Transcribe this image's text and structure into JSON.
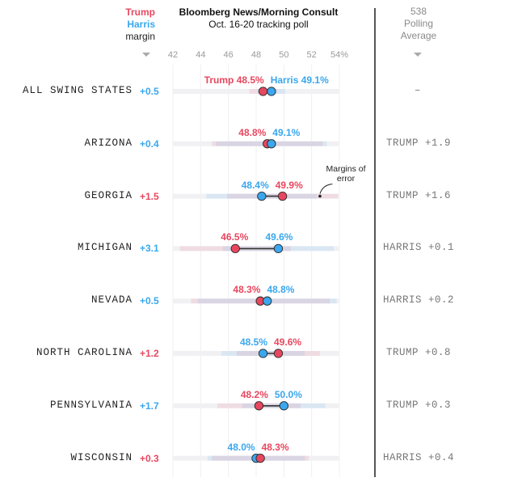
{
  "header": {
    "legend": {
      "trump": "Trump",
      "harris": "Harris",
      "margin": "margin"
    },
    "title": "Bloomberg News/Morning Consult",
    "subtitle": "Oct. 16-20 tracking poll",
    "polling_avg_header": [
      "538",
      "Polling",
      "Average"
    ],
    "sort_icon": "triangle-down-icon"
  },
  "colors": {
    "trump": "#e8475f",
    "harris": "#3aa7ee",
    "neutral": "#222222",
    "muted": "#8a8a8a"
  },
  "annotation": "Margins of error",
  "chart_data": {
    "type": "dot-range",
    "title": "Bloomberg News/Morning Consult Oct. 16-20 tracking poll",
    "xlabel": "",
    "ylabel": "",
    "x_ticks": [
      "42",
      "44",
      "46",
      "48",
      "50",
      "52",
      "54%"
    ],
    "x_tick_values": [
      42,
      44,
      46,
      48,
      50,
      52,
      54
    ],
    "xlim": [
      42,
      54
    ],
    "grid": true,
    "legend": "top-left",
    "series": [
      {
        "name": "Trump",
        "color": "#e8475f"
      },
      {
        "name": "Harris",
        "color": "#3aa7ee"
      }
    ],
    "rows": [
      {
        "state": "ALL SWING STATES",
        "trump": 48.5,
        "harris": 49.1,
        "moe": 1.0,
        "margin": "+0.5",
        "leader": "harris",
        "poll_avg": "–",
        "trump_label": "Trump 48.5%",
        "harris_label": "Harris 49.1%"
      },
      {
        "state": "ARIZONA",
        "trump": 48.8,
        "harris": 49.1,
        "moe": 4.0,
        "margin": "+0.4",
        "leader": "harris",
        "poll_avg": "TRUMP +1.9",
        "trump_label": "48.8%",
        "harris_label": "49.1%"
      },
      {
        "state": "GEORGIA",
        "trump": 49.9,
        "harris": 48.4,
        "moe": 4.0,
        "margin": "+1.5",
        "leader": "trump",
        "poll_avg": "TRUMP +1.6",
        "trump_label": "49.9%",
        "harris_label": "48.4%"
      },
      {
        "state": "MICHIGAN",
        "trump": 46.5,
        "harris": 49.6,
        "moe": 4.0,
        "margin": "+3.1",
        "leader": "harris",
        "poll_avg": "HARRIS +0.1",
        "trump_label": "46.5%",
        "harris_label": "49.6%"
      },
      {
        "state": "NEVADA",
        "trump": 48.3,
        "harris": 48.8,
        "moe": 5.0,
        "margin": "+0.5",
        "leader": "harris",
        "poll_avg": "HARRIS +0.2",
        "trump_label": "48.3%",
        "harris_label": "48.8%"
      },
      {
        "state": "NORTH CAROLINA",
        "trump": 49.6,
        "harris": 48.5,
        "moe": 3.0,
        "margin": "+1.2",
        "leader": "trump",
        "poll_avg": "TRUMP +0.8",
        "trump_label": "49.6%",
        "harris_label": "48.5%"
      },
      {
        "state": "PENNSYLVANIA",
        "trump": 48.2,
        "harris": 50.0,
        "moe": 3.0,
        "margin": "+1.7",
        "leader": "harris",
        "poll_avg": "TRUMP +0.3",
        "trump_label": "48.2%",
        "harris_label": "50.0%"
      },
      {
        "state": "WISCONSIN",
        "trump": 48.3,
        "harris": 48.0,
        "moe": 3.5,
        "margin": "+0.3",
        "leader": "trump",
        "poll_avg": "HARRIS +0.4",
        "trump_label": "48.3%",
        "harris_label": "48.0%"
      }
    ]
  }
}
